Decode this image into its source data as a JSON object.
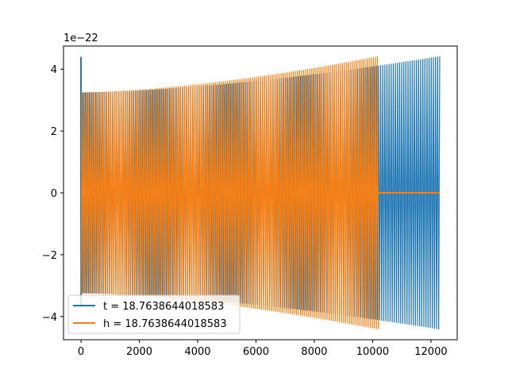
{
  "chart_data": {
    "type": "line",
    "title": "",
    "xlabel": "",
    "ylabel": "",
    "y_offset_label": "1e−22",
    "xlim": [
      -600,
      12900
    ],
    "ylim": [
      -4.75,
      4.75
    ],
    "x_ticks": [
      0,
      2000,
      4000,
      6000,
      8000,
      10000,
      12000
    ],
    "x_tick_labels": [
      "0",
      "2000",
      "4000",
      "6000",
      "8000",
      "10000",
      "12000"
    ],
    "y_ticks": [
      -4,
      -2,
      0,
      2,
      4
    ],
    "y_tick_labels": [
      "−4",
      "−2",
      "0",
      "2",
      "4"
    ],
    "grid": false,
    "legend_position": "lower-left",
    "series": [
      {
        "name": "t = 18.7638644018583",
        "color": "#1f77b4",
        "x_start": 0,
        "x_end": 12300,
        "amplitude_start": 3.25,
        "amplitude_end": 4.42,
        "initial_spike": 4.4
      },
      {
        "name": "h = 18.7638644018583",
        "color": "#ff7f0e",
        "x_start": 0,
        "x_end": 10200,
        "amplitude_start": 3.25,
        "amplitude_end": 4.42,
        "zero_until": 12300
      }
    ]
  }
}
